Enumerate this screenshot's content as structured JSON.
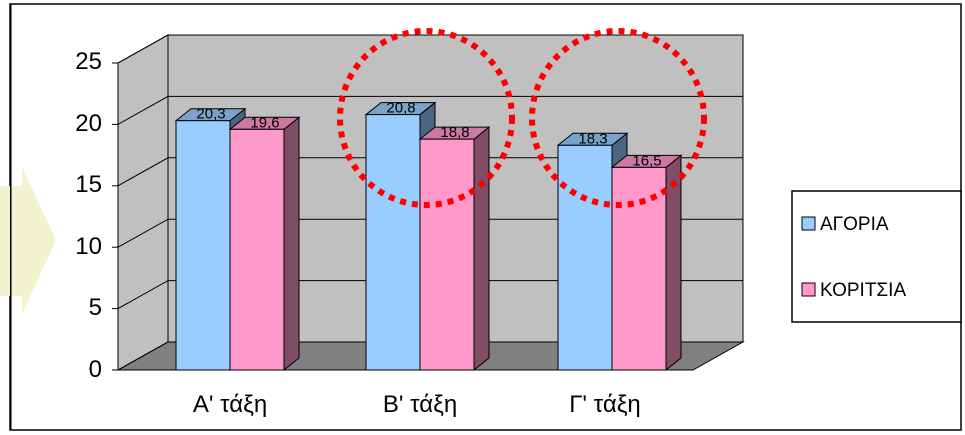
{
  "chart_data": {
    "type": "bar",
    "categories": [
      "Α' τάξη",
      "Β' τάξη",
      "Γ' τάξη"
    ],
    "series": [
      {
        "name": "ΑΓΟΡΙΑ",
        "values": [
          20.3,
          20.8,
          18.3
        ],
        "labels": [
          "20,3",
          "20,8",
          "18,3"
        ]
      },
      {
        "name": "ΚΟΡΙΤΣΙΑ",
        "values": [
          19.6,
          18.8,
          16.5
        ],
        "labels": [
          "19,6",
          "18,8",
          "16,5"
        ]
      }
    ],
    "yticks": [
      "0",
      "5",
      "10",
      "15",
      "20",
      "25"
    ],
    "ylim": [
      0,
      25
    ],
    "grid": true,
    "three_d": true,
    "legend": "right",
    "highlighted_categories": [
      "Β' τάξη",
      "Γ' τάξη"
    ],
    "colors": {
      "boys_front": "#99ccff",
      "boys_top": "#7aa3cc",
      "boys_side": "#4d6680",
      "girls_front": "#ff99cc",
      "girls_top": "#cc7aa3",
      "girls_side": "#804d66",
      "wall": "#c0c0c0",
      "floor": "#808080",
      "highlight_circle": "#ff0000",
      "arrow": "#f2f2cf"
    }
  }
}
